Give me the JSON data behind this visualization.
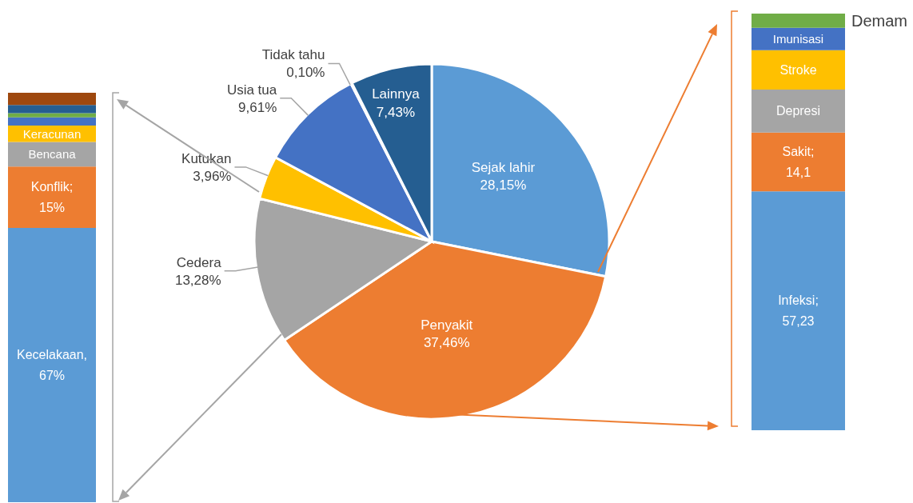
{
  "chart_data": [
    {
      "type": "bar",
      "stacked": true,
      "ylim": [
        0,
        100
      ],
      "tick_labels": false,
      "categories": [
        null
      ],
      "series": [
        {
          "color": "#5b9bd5",
          "values": [
            67
          ],
          "value_labels": [
            "Kecelakaan, 67%"
          ]
        },
        {
          "color": "#ed7d31",
          "values": [
            15
          ],
          "value_labels": [
            "Konflik; 15%"
          ]
        },
        {
          "color": "#a5a5a5",
          "values": [
            6
          ],
          "value_labels": [
            "Bencana"
          ]
        },
        {
          "color": "#ffc000",
          "values": [
            4
          ],
          "value_labels": [
            "Keracunan"
          ]
        },
        {
          "color": "#4472c4",
          "values": [
            2
          ]
        },
        {
          "color": "#70ad47",
          "values": [
            1
          ]
        },
        {
          "color": "#255e91",
          "values": [
            2
          ]
        },
        {
          "color": "#9e480e",
          "values": [
            3
          ]
        }
      ]
    },
    {
      "type": "pie",
      "categories": [
        "Sejak lahir",
        "Penyakit",
        "Cedera",
        "Kutukan",
        "Usia tua",
        "Tidak tahu",
        "Lainnya"
      ],
      "values": [
        28.15,
        37.46,
        13.28,
        3.96,
        9.61,
        0.1,
        7.43
      ],
      "value_labels": [
        "28,15%",
        "37,46%",
        "13,28%",
        "3,96%",
        "9,61%",
        "0,10%",
        "7,43%"
      ],
      "colors": [
        "#5b9bd5",
        "#ed7d31",
        "#a5a5a5",
        "#ffc000",
        "#4472c4",
        "#70ad47",
        "#255e91"
      ]
    },
    {
      "type": "bar",
      "stacked": true,
      "ylim": [
        0,
        100
      ],
      "tick_labels": false,
      "categories": [
        null
      ],
      "series": [
        {
          "color": "#5b9bd5",
          "values": [
            57.23
          ],
          "value_labels": [
            "Infeksi; 57,23"
          ]
        },
        {
          "color": "#ed7d31",
          "values": [
            14.1
          ],
          "value_labels": [
            "Sakit; 14,1"
          ]
        },
        {
          "color": "#a5a5a5",
          "values": [
            10.3
          ],
          "value_labels": [
            "Depresi"
          ]
        },
        {
          "color": "#ffc000",
          "values": [
            9.4
          ],
          "value_labels": [
            "Stroke"
          ]
        },
        {
          "color": "#4472c4",
          "values": [
            5.4
          ],
          "value_labels": [
            "Imunisasi"
          ]
        },
        {
          "name": "Demam",
          "color": "#70ad47",
          "values": [
            3.4
          ]
        }
      ]
    }
  ]
}
